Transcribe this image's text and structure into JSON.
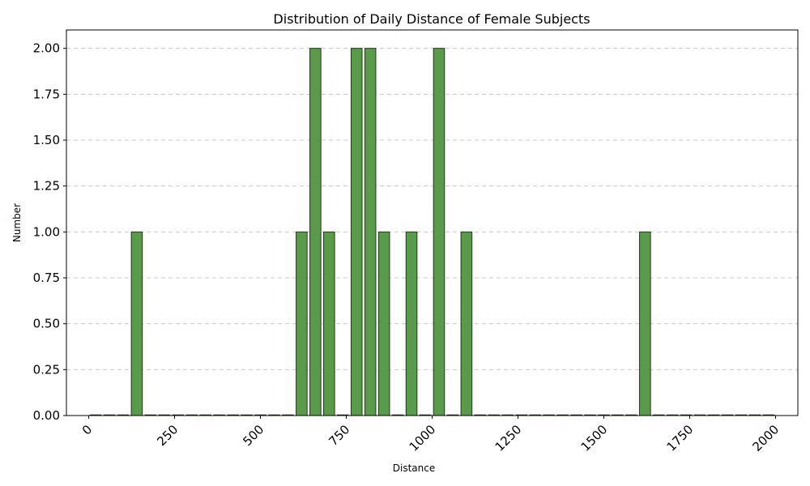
{
  "chart_data": {
    "type": "bar",
    "title": "Distribution of Daily Distance of Female Subjects",
    "xlabel": "Distance",
    "ylabel": "Number",
    "xlim": [
      -65,
      2065
    ],
    "ylim": [
      0,
      2.1
    ],
    "xticks": [
      "0",
      "250",
      "500",
      "750",
      "1000",
      "1250",
      "1500",
      "1750",
      "2000"
    ],
    "xtick_values": [
      0,
      250,
      500,
      750,
      1000,
      1250,
      1500,
      1750,
      2000
    ],
    "yticks": [
      "0.00",
      "0.25",
      "0.50",
      "0.75",
      "1.00",
      "1.25",
      "1.50",
      "1.75",
      "2.00"
    ],
    "ytick_values": [
      0,
      0.25,
      0.5,
      0.75,
      1.0,
      1.25,
      1.5,
      1.75,
      2.0
    ],
    "grid": "y",
    "bin_width": 40,
    "x": [
      20,
      60,
      100,
      140,
      180,
      220,
      260,
      300,
      340,
      380,
      420,
      460,
      500,
      540,
      580,
      620,
      660,
      700,
      740,
      780,
      820,
      860,
      900,
      940,
      980,
      1020,
      1060,
      1100,
      1140,
      1180,
      1220,
      1260,
      1300,
      1340,
      1380,
      1420,
      1460,
      1500,
      1540,
      1580,
      1620,
      1660,
      1700,
      1740,
      1780,
      1820,
      1860,
      1900,
      1940,
      1980
    ],
    "values": [
      0,
      0,
      0,
      1,
      0,
      0,
      0,
      0,
      0,
      0,
      0,
      0,
      0,
      0,
      0,
      1,
      2,
      1,
      0,
      2,
      2,
      1,
      0,
      1,
      0,
      2,
      0,
      1,
      0,
      0,
      0,
      0,
      0,
      0,
      0,
      0,
      0,
      0,
      0,
      0,
      1,
      0,
      0,
      0,
      0,
      0,
      0,
      0,
      0,
      0
    ],
    "colors": {
      "bar": "#5a9a4b",
      "edge": "#1e3a18",
      "grid": "#c8c8c8"
    }
  }
}
